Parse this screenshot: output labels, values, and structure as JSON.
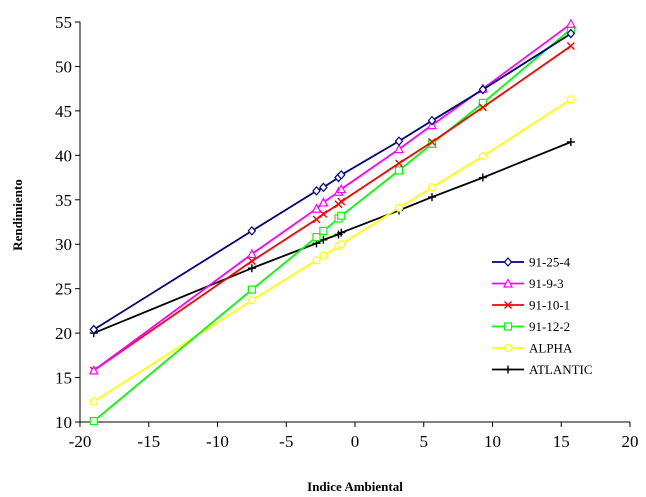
{
  "chart_data": {
    "type": "line",
    "title": "",
    "xlabel": "Indice  Ambiental",
    "ylabel": "Rendimiento",
    "xlim": [
      -20,
      20
    ],
    "ylim": [
      10,
      55
    ],
    "xticks": [
      -20,
      -15,
      -10,
      -5,
      0,
      5,
      10,
      15,
      20
    ],
    "yticks": [
      10,
      15,
      20,
      25,
      30,
      35,
      40,
      45,
      50,
      55
    ],
    "grid": false,
    "legend_position": "right",
    "series": [
      {
        "name": "91-25-4",
        "color": "#000080",
        "marker": "diamond",
        "x": [
          -19,
          -7.5,
          -2.8,
          -2.3,
          -1.2,
          -1.0,
          3.2,
          5.6,
          9.3,
          15.7
        ],
        "y": [
          20.4,
          31.5,
          36.0,
          36.4,
          37.5,
          37.8,
          41.6,
          43.9,
          47.4,
          53.7
        ]
      },
      {
        "name": "91-9-3",
        "color": "#ff00ff",
        "marker": "triangle",
        "x": [
          -19,
          -7.5,
          -2.8,
          -2.3,
          -1.2,
          -1.0,
          3.2,
          5.6,
          9.3,
          15.7
        ],
        "y": [
          15.8,
          28.9,
          34.0,
          34.7,
          35.9,
          36.2,
          40.7,
          43.4,
          47.5,
          54.8
        ]
      },
      {
        "name": "91-10-1",
        "color": "#ff0000",
        "marker": "x",
        "x": [
          -19,
          -7.5,
          -2.8,
          -2.3,
          -1.2,
          -1.0,
          3.2,
          5.6,
          9.3,
          15.7
        ],
        "y": [
          15.8,
          28.1,
          32.8,
          33.4,
          34.5,
          34.8,
          39.1,
          41.5,
          45.4,
          52.3
        ]
      },
      {
        "name": "91-12-2",
        "color": "#00ff00",
        "marker": "square",
        "x": [
          -19,
          -7.5,
          -2.8,
          -2.3,
          -1.2,
          -1.0,
          3.2,
          5.6,
          9.3,
          15.7
        ],
        "y": [
          10.1,
          24.9,
          30.8,
          31.5,
          32.9,
          33.2,
          38.3,
          41.3,
          45.9,
          54.2
        ]
      },
      {
        "name": "ALPHA",
        "color": "#ffff00",
        "marker": "circle",
        "x": [
          -19,
          -7.5,
          -2.8,
          -2.3,
          -1.2,
          -1.0,
          3.2,
          5.6,
          9.3,
          15.7
        ],
        "y": [
          12.3,
          23.7,
          28.2,
          28.7,
          29.8,
          30.0,
          34.1,
          36.4,
          39.9,
          46.3
        ]
      },
      {
        "name": "ATLANTIC",
        "color": "#000000",
        "marker": "plus",
        "x": [
          -19,
          -7.5,
          -2.8,
          -2.3,
          -1.2,
          -1.0,
          3.2,
          5.6,
          9.3,
          15.7
        ],
        "y": [
          20.0,
          27.3,
          30.1,
          30.5,
          31.1,
          31.3,
          33.8,
          35.3,
          37.5,
          41.5
        ]
      }
    ]
  }
}
